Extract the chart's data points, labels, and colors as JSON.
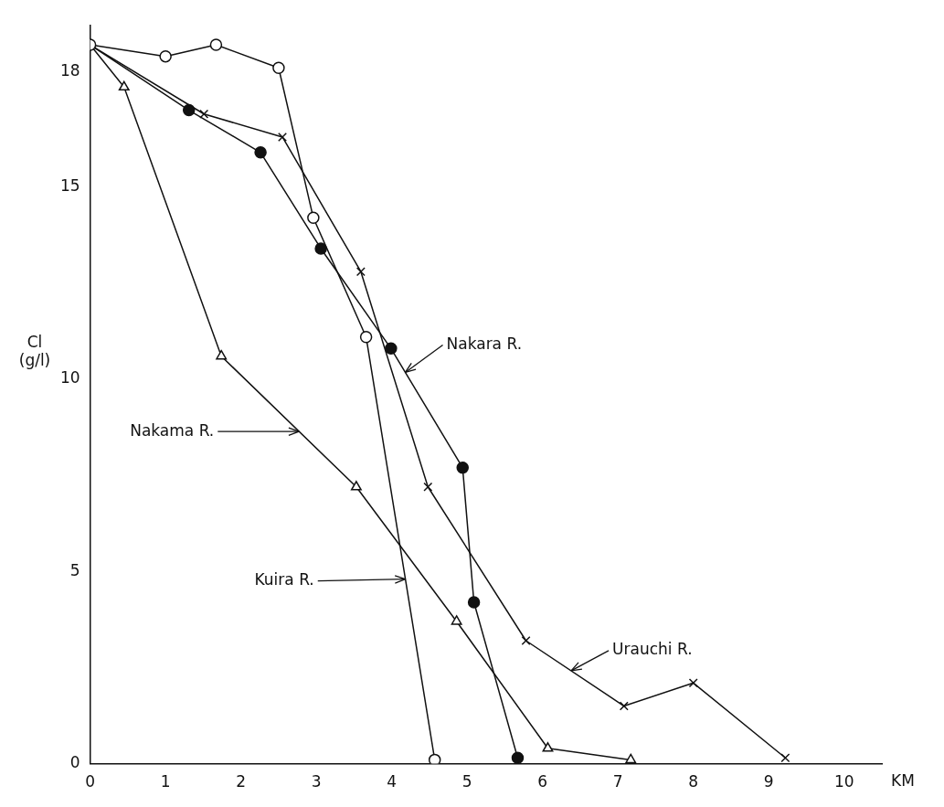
{
  "chart_data": {
    "type": "line",
    "xlabel": "KM",
    "ylabel": "Cl\n(g/l)",
    "xlim": [
      0,
      10.5
    ],
    "xticks": [
      0,
      1,
      2,
      3,
      4,
      5,
      6,
      7,
      8,
      9,
      10
    ],
    "ylim": [
      0,
      19.2
    ],
    "yticks": [
      0,
      5,
      10,
      15,
      18
    ],
    "grid": false,
    "legend": false,
    "series": [
      {
        "color": "#111111",
        "marker": "circle",
        "x": [
          0,
          1,
          1.67,
          2.5,
          2.96,
          3.66,
          4.57
        ],
        "values": [
          18.7,
          18.4,
          18.7,
          18.1,
          14.2,
          11.1,
          0.1
        ]
      },
      {
        "color": "#111111",
        "marker": "circle",
        "x": [
          0,
          1.31,
          2.26,
          3.06,
          3.99,
          4.94,
          5.09,
          5.67
        ],
        "values": [
          18.7,
          17.0,
          15.9,
          13.4,
          10.8,
          7.7,
          4.2,
          0.15
        ]
      },
      {
        "color": "#111111",
        "marker": "cross",
        "x": [
          0,
          1.51,
          2.55,
          3.59,
          4.48,
          5.78,
          7.08,
          8.0,
          9.22
        ],
        "values": [
          18.7,
          16.9,
          16.3,
          12.8,
          7.2,
          3.2,
          1.5,
          2.1,
          0.15
        ]
      },
      {
        "color": "#111111",
        "marker": "triangle",
        "x": [
          0,
          0.45,
          1.74,
          3.53,
          4.86,
          6.07,
          7.17
        ],
        "values": [
          18.7,
          17.6,
          10.6,
          7.2,
          3.7,
          0.4,
          0.1
        ]
      }
    ],
    "annotations": [
      {
        "text": "Nakara R.",
        "x": 4.18,
        "y": 10.18
      },
      {
        "text": "Nakama R.",
        "x": 2.77,
        "y": 8.64
      },
      {
        "text": "Kuira R.",
        "x": 4.18,
        "y": 4.8
      },
      {
        "text": "Urauchi R.",
        "x": 6.38,
        "y": 2.42
      }
    ]
  }
}
